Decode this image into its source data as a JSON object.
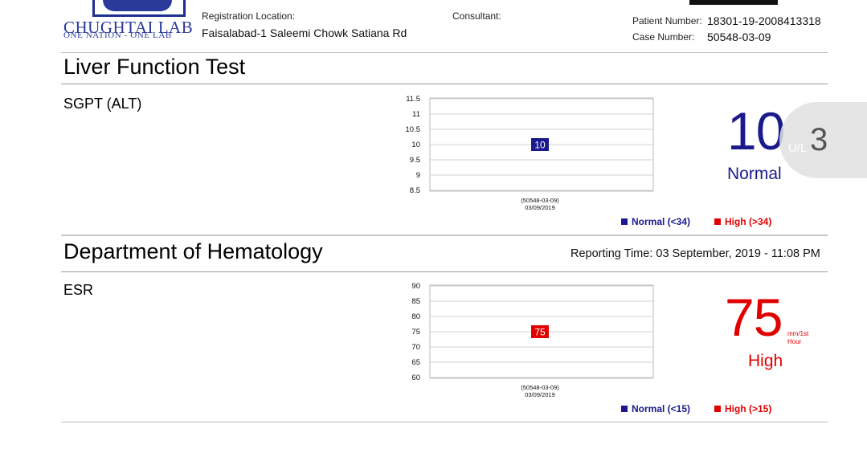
{
  "header": {
    "logo_name": "CHUGHTAI LAB",
    "logo_tagline": "ONE NATION - ONE LAB",
    "registration_location_label": "Registration Location:",
    "registration_location": "Faisalabad-1 Saleemi Chowk Satiana Rd",
    "consultant_label": "Consultant:",
    "patient_number_label": "Patient Number:",
    "patient_number": "18301-19-2008413318",
    "case_number_label": "Case Number:",
    "case_number": "50548-03-09"
  },
  "sections": [
    {
      "title": "Liver Function Test",
      "test_name": "SGPT (ALT)",
      "result_value": "10",
      "unit": "U/L",
      "status": "Normal",
      "status_color": "#1a1a8c",
      "legend_normal": "Normal (<34)",
      "legend_high": "High (>34)",
      "chart_data": {
        "type": "bar",
        "y_ticks": [
          "11.5",
          "11",
          "10.5",
          "10",
          "9.5",
          "9",
          "8.5"
        ],
        "ylim": [
          8.5,
          11.5
        ],
        "categories": [
          "(50548-03-09)|03/09/2019"
        ],
        "x_label_line1": "(50548-03-09)",
        "x_label_line2": "03/09/2019",
        "values": [
          10
        ],
        "value_label": "10",
        "point_color": "#1a1a8c",
        "grid": true
      }
    },
    {
      "title": "Department of Hematology",
      "reporting_time": "Reporting Time: 03 September, 2019 - 11:08 PM",
      "test_name": "ESR",
      "result_value": "75",
      "unit_line1": "mm/1st",
      "unit_line2": "Hour",
      "status": "High",
      "status_color": "#e00000",
      "legend_normal": "Normal (<15)",
      "legend_high": "High (>15)",
      "chart_data": {
        "type": "bar",
        "y_ticks": [
          "90",
          "85",
          "80",
          "75",
          "70",
          "65",
          "60"
        ],
        "ylim": [
          60,
          90
        ],
        "categories": [
          "(50548-03-09)|03/09/2019"
        ],
        "x_label_line1": "(50548-03-09)",
        "x_label_line2": "03/09/2019",
        "values": [
          75
        ],
        "value_label": "75",
        "point_color": "#e00000",
        "grid": true
      }
    }
  ],
  "overlay": {
    "number": "3"
  },
  "colors": {
    "normal": "#1a1a8c",
    "high": "#e00000",
    "logo": "#2a3a9a"
  }
}
